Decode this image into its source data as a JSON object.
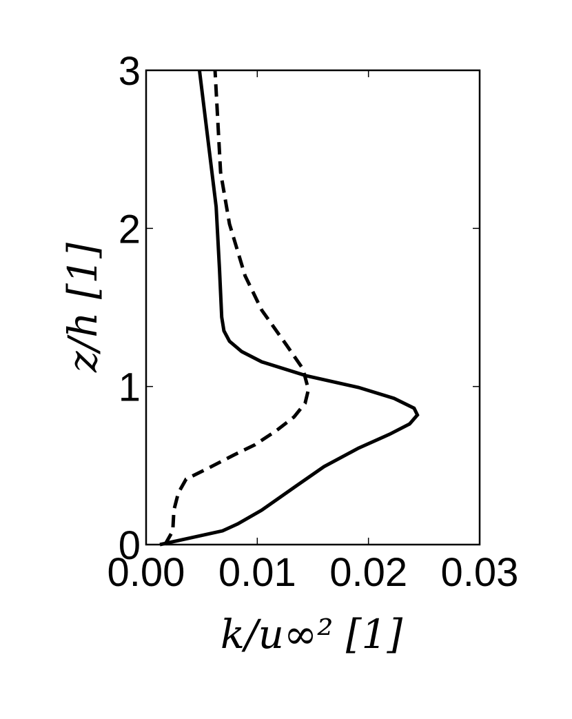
{
  "chart_data": {
    "type": "line",
    "xlabel": "k/u∞²  [1]",
    "ylabel": "z/h [1]",
    "xlim": [
      0,
      0.03
    ],
    "xticks": [
      {
        "value": 0,
        "label": "0.00"
      },
      0.01,
      0.02,
      0.03
    ],
    "ylim": [
      0,
      3
    ],
    "yticks": [
      0,
      1,
      2,
      3
    ],
    "series": [
      {
        "color": "#000000",
        "dash": "solid",
        "x": [
          0.00124,
          0.00688,
          0.00825,
          0.0104,
          0.0135,
          0.016,
          0.0191,
          0.0219,
          0.0237,
          0.0244,
          0.0241,
          0.0223,
          0.0191,
          0.0144,
          0.0104,
          0.0086,
          0.0075,
          0.007,
          0.0068,
          0.0066,
          0.0063,
          0.0048
        ],
        "values": [
          0,
          0.087,
          0.131,
          0.218,
          0.371,
          0.493,
          0.61,
          0.698,
          0.763,
          0.82,
          0.863,
          0.925,
          0.994,
          1.068,
          1.156,
          1.221,
          1.286,
          1.352,
          1.439,
          1.744,
          2.137,
          3.0
        ]
      },
      {
        "color": "#000000",
        "dash": "dashed",
        "x": [
          0.0017,
          0.0024,
          0.0025,
          0.0029,
          0.0036,
          0.0055,
          0.0079,
          0.0098,
          0.0117,
          0.0133,
          0.0143,
          0.0146,
          0.0141,
          0.0126,
          0.0104,
          0.0089,
          0.0075,
          0.0067,
          0.0062
        ],
        "values": [
          0,
          0.087,
          0.218,
          0.327,
          0.414,
          0.48,
          0.567,
          0.632,
          0.72,
          0.807,
          0.894,
          0.981,
          1.112,
          1.265,
          1.483,
          1.701,
          2.028,
          2.355,
          3.0
        ]
      }
    ]
  }
}
